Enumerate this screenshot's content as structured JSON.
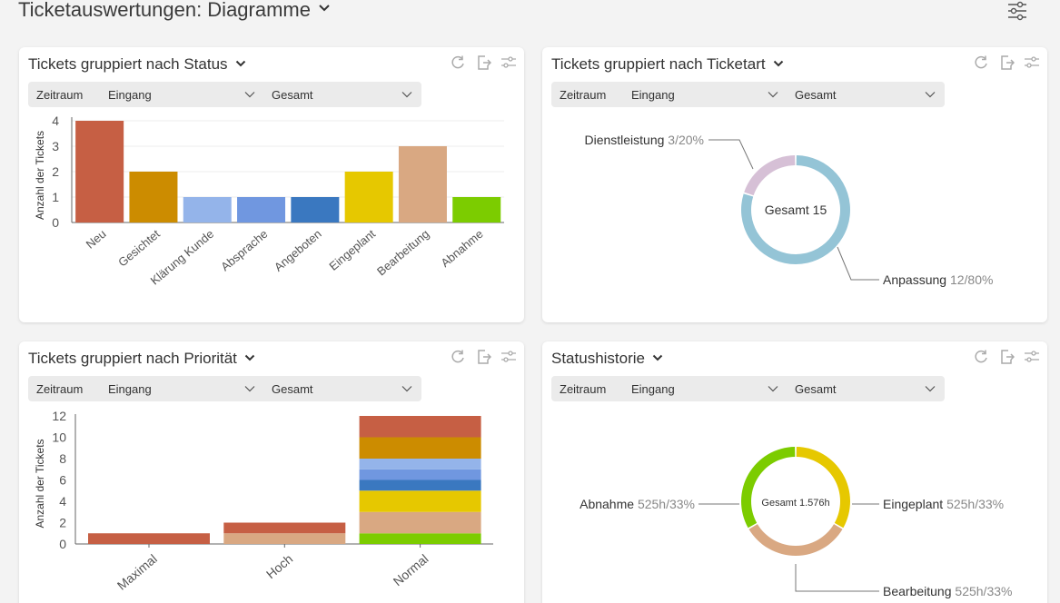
{
  "page": {
    "title": "Ticketauswertungen: Diagramme"
  },
  "filters": {
    "label": "Zeitraum",
    "select1": "Eingang",
    "select2": "Gesamt"
  },
  "cards": {
    "status": {
      "title": "Tickets gruppiert nach Status",
      "chart_data": {
        "type": "bar",
        "title": "Tickets gruppiert nach Status",
        "ylabel": "Anzahl der Tickets",
        "xlabel": "",
        "ylim": [
          0,
          4
        ],
        "yticks": [
          0,
          1,
          2,
          3,
          4
        ],
        "categories": [
          "Neu",
          "Gesichtet",
          "Klärung Kunde",
          "Absprache",
          "Angeboten",
          "Eingeplant",
          "Bearbeitung",
          "Abnahme"
        ],
        "values": [
          4,
          2,
          1,
          1,
          1,
          2,
          3,
          1
        ],
        "colors": [
          "#c65f44",
          "#cc8c00",
          "#94b4ea",
          "#7097e0",
          "#3a78c0",
          "#e6c800",
          "#d9a882",
          "#7ccc00"
        ]
      }
    },
    "ticketart": {
      "title": "Tickets gruppiert nach Ticketart",
      "chart_data": {
        "type": "pie",
        "title": "Tickets gruppiert nach Ticketart",
        "center_label": "Gesamt 15",
        "slices": [
          {
            "name": "Anpassung",
            "value": 12,
            "value_label": "12/80%",
            "color": "#94c4d6"
          },
          {
            "name": "Dienstleistung",
            "value": 3,
            "value_label": "3/20%",
            "color": "#d6c0d6"
          }
        ]
      }
    },
    "prioritaet": {
      "title": "Tickets gruppiert nach Priorität",
      "chart_data": {
        "type": "bar",
        "stacked": true,
        "title": "Tickets gruppiert nach Priorität",
        "ylabel": "Anzahl der Tickets",
        "xlabel": "",
        "ylim": [
          0,
          12
        ],
        "yticks": [
          0,
          2,
          4,
          6,
          8,
          10,
          12
        ],
        "categories": [
          "Maximal",
          "Hoch",
          "Normal"
        ],
        "series": [
          {
            "color": "#7ccc00",
            "values": [
              0,
              0,
              1
            ]
          },
          {
            "color": "#d9a882",
            "values": [
              0,
              1,
              2
            ]
          },
          {
            "color": "#e6c800",
            "values": [
              0,
              0,
              2
            ]
          },
          {
            "color": "#3a78c0",
            "values": [
              0,
              0,
              1
            ]
          },
          {
            "color": "#7097e0",
            "values": [
              0,
              0,
              1
            ]
          },
          {
            "color": "#94b4ea",
            "values": [
              0,
              0,
              1
            ]
          },
          {
            "color": "#cc8c00",
            "values": [
              0,
              0,
              2
            ]
          },
          {
            "color": "#c65f44",
            "values": [
              1,
              1,
              2
            ]
          }
        ]
      }
    },
    "statushistorie": {
      "title": "Statushistorie",
      "chart_data": {
        "type": "pie",
        "title": "Statushistorie",
        "center_label": "Gesamt 1.576h",
        "slices": [
          {
            "name": "Eingeplant",
            "value": 525,
            "value_label": "525h/33%",
            "color": "#e6c800"
          },
          {
            "name": "Bearbeitung",
            "value": 525,
            "value_label": "525h/33%",
            "color": "#d9a882"
          },
          {
            "name": "Abnahme",
            "value": 525,
            "value_label": "525h/33%",
            "color": "#7ccc00"
          }
        ]
      }
    }
  },
  "icons": {
    "refresh": "refresh-icon",
    "export": "export-icon",
    "settings": "sliders-icon",
    "chevron": "chevron-down-icon"
  }
}
